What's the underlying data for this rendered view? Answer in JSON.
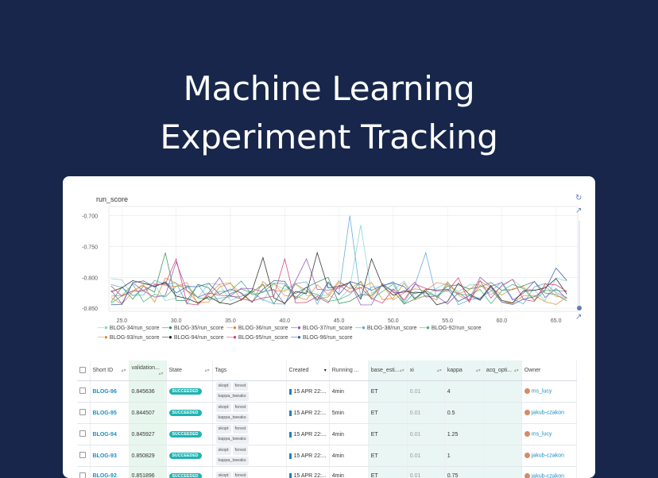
{
  "headline": [
    "Machine Learning",
    "Experiment Tracking"
  ],
  "chart": {
    "title": "run_score",
    "y_ticks": [
      "-0.700",
      "-0.750",
      "-0.800",
      "-0.850"
    ],
    "x_ticks": [
      "25.0",
      "30.0",
      "35.0",
      "40.0",
      "45.0",
      "50.0",
      "55.0",
      "60.0",
      "65.0"
    ]
  },
  "chart_data": {
    "type": "line",
    "title": "run_score",
    "xlabel": "",
    "ylabel": "",
    "xlim": [
      23.8,
      67
    ],
    "ylim": [
      -0.855,
      -0.685
    ],
    "series": [
      {
        "name": "BLOG-34/run_score",
        "color": "#7fd4cf"
      },
      {
        "name": "BLOG-35/run_score",
        "color": "#2e8b57"
      },
      {
        "name": "BLOG-36/run_score",
        "color": "#d98c2b"
      },
      {
        "name": "BLOG-37/run_score",
        "color": "#8a4fbf"
      },
      {
        "name": "BLOG-38/run_score",
        "color": "#5aa5d8"
      },
      {
        "name": "BLOG-92/run_score",
        "color": "#3cb371"
      },
      {
        "name": "BLOG-93/run_score",
        "color": "#e08f3b"
      },
      {
        "name": "BLOG-94/run_score",
        "color": "#222222"
      },
      {
        "name": "BLOG-95/run_score",
        "color": "#d23c6e"
      },
      {
        "name": "BLOG-96/run_score",
        "color": "#3d5a9e"
      }
    ]
  },
  "legend": [
    "BLOG-34/run_score",
    "BLOG-35/run_score",
    "BLOG-36/run_score",
    "BLOG-37/run_score",
    "BLOG-38/run_score",
    "BLOG-92/run_score",
    "BLOG-93/run_score",
    "BLOG-94/run_score",
    "BLOG-95/run_score",
    "BLOG-96/run_score"
  ],
  "table": {
    "columns": [
      "Short ID",
      "validation...",
      "State",
      "Tags",
      "Created",
      "Running ...",
      "base_esti...",
      "xi",
      "kappa",
      "acq_opti...",
      "Owner"
    ],
    "rows": [
      {
        "id": "BLOG-96",
        "val": "0.845636",
        "state": "SUCCEEDED",
        "tags": [
          "skopt",
          "forest",
          "kappa_tweaks"
        ],
        "created": "15 APR 22:...",
        "running": "4min",
        "base": "ET",
        "xi": "0.01",
        "kappa": "4",
        "acq": "",
        "owner": "ms_lucy"
      },
      {
        "id": "BLOG-95",
        "val": "0.844507",
        "state": "SUCCEEDED",
        "tags": [
          "skopt",
          "forest",
          "kappa_tweaks"
        ],
        "created": "15 APR 22:...",
        "running": "5min",
        "base": "ET",
        "xi": "0.01",
        "kappa": "0.5",
        "acq": "",
        "owner": "jakub-czakon"
      },
      {
        "id": "BLOG-94",
        "val": "0.845927",
        "state": "SUCCEEDED",
        "tags": [
          "skopt",
          "forest",
          "kappa_tweaks"
        ],
        "created": "15 APR 22:...",
        "running": "4min",
        "base": "ET",
        "xi": "0.01",
        "kappa": "1.25",
        "acq": "",
        "owner": "ms_lucy"
      },
      {
        "id": "BLOG-93",
        "val": "0.850829",
        "state": "SUCCEEDED",
        "tags": [
          "skopt",
          "forest",
          "kappa_tweaks"
        ],
        "created": "15 APR 22:...",
        "running": "4min",
        "base": "ET",
        "xi": "0.01",
        "kappa": "1",
        "acq": "",
        "owner": "jakub-czakon"
      },
      {
        "id": "BLOG-92",
        "val": "0.851896",
        "state": "SUCCEEDED",
        "tags": [
          "skopt",
          "forest"
        ],
        "created": "15 APR 22:...",
        "running": "4min",
        "base": "ET",
        "xi": "0.01",
        "kappa": "0.75",
        "acq": "",
        "owner": "jakub-czakon"
      }
    ]
  }
}
